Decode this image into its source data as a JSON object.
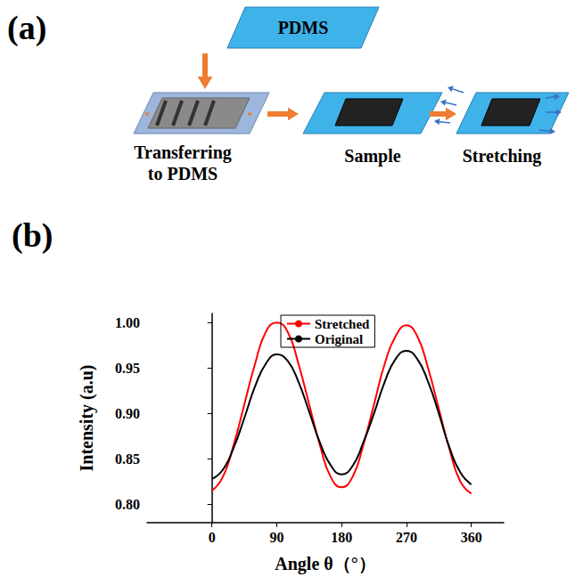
{
  "diagram": {
    "panel_label": "(a)",
    "top_sheet": "PDMS",
    "steps": [
      {
        "label_lines": [
          "Transferring",
          "to PDMS"
        ]
      },
      {
        "label_lines": [
          "Sample"
        ]
      },
      {
        "label_lines": [
          "Stretching"
        ]
      }
    ]
  },
  "chart_data": {
    "type": "line",
    "panel_label": "(b)",
    "x_label": "Angle θ（°）",
    "y_label": "Intensity (a.u)",
    "x": [
      0,
      15,
      30,
      45,
      60,
      75,
      90,
      105,
      120,
      135,
      150,
      165,
      180,
      195,
      210,
      225,
      240,
      255,
      270,
      285,
      300,
      315,
      330,
      345,
      360
    ],
    "series": [
      {
        "name": "Stretched",
        "color": "#ff0000",
        "values": [
          0.815,
          0.83,
          0.865,
          0.91,
          0.955,
          0.99,
          1.0,
          0.99,
          0.955,
          0.91,
          0.865,
          0.83,
          0.819,
          0.83,
          0.865,
          0.91,
          0.955,
          0.985,
          0.997,
          0.985,
          0.95,
          0.905,
          0.86,
          0.825,
          0.812
        ]
      },
      {
        "name": "Original",
        "color": "#000000",
        "values": [
          0.828,
          0.838,
          0.862,
          0.895,
          0.93,
          0.955,
          0.965,
          0.958,
          0.935,
          0.902,
          0.868,
          0.843,
          0.833,
          0.842,
          0.868,
          0.9,
          0.935,
          0.96,
          0.969,
          0.96,
          0.935,
          0.9,
          0.862,
          0.835,
          0.822
        ]
      }
    ],
    "xlim": [
      -90,
      405
    ],
    "xticks": [
      0,
      90,
      180,
      270,
      360
    ],
    "ylim": [
      0.78,
      1.01
    ],
    "yticks": [
      {
        "value": 0.8,
        "label": "0.80"
      },
      {
        "value": 0.85,
        "label": "0.85"
      },
      {
        "value": 0.9,
        "label": "0.90"
      },
      {
        "value": 0.95,
        "label": "0.95"
      },
      {
        "value": 1.0,
        "label": "1.00"
      }
    ],
    "legend": "top",
    "grid": false
  }
}
